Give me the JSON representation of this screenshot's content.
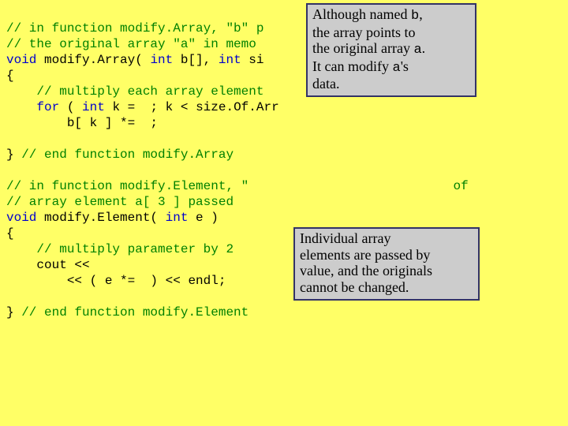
{
  "code": {
    "l1_a": "// in function modify.Array, \"b\" p",
    "l2_a": "// the original array \"a\" in memo",
    "l3_a": "void",
    "l3_b": " modify.Array( ",
    "l3_c": "int",
    "l3_d": " b[], ",
    "l3_e": "int",
    "l3_f": " si",
    "l4": "{",
    "l5": "    // multiply each array element",
    "l6_a": "    ",
    "l6_b": "for",
    "l6_c": " ( ",
    "l6_d": "int",
    "l6_e": " k =  ; k < size.Of.Arr",
    "l7": "        b[ k ] *=  ;",
    "l8": "",
    "l9": "} ",
    "l9_b": "// end function modify.Array",
    "l10": "",
    "l11_a": "// in function modify.Element, \"",
    "l11_b": " of",
    "l12": "// array element a[ 3 ] passed ",
    "l13_a": "void",
    "l13_b": " modify.Element( ",
    "l13_c": "int",
    "l13_d": " e )",
    "l14": "{",
    "l15": "    // multiply parameter by 2",
    "l16": "    cout << ",
    "l17": "        << ( e *=  ) << endl;",
    "l18": "",
    "l19": "} ",
    "l19_b": "// end function modify.Element"
  },
  "callout_top": {
    "t1_a": "Although named ",
    "t1_b": "b",
    "t1_c": ",",
    "t2": "the array points to",
    "t3_a": "the original array ",
    "t3_b": "a",
    "t3_c": ".",
    "t4_a": "It can modify ",
    "t4_b": "a",
    "t4_c": "'s",
    "t5": "data."
  },
  "callout_bot": {
    "b1": "Individual array",
    "b2": "elements are passed by",
    "b3": "value, and the originals",
    "b4": "cannot be changed."
  },
  "style": {
    "bg": "#ffff66",
    "comment_color": "#008000",
    "keyword_color": "#0000cc",
    "callout_bg": "#cccccc",
    "callout_border": "#333366",
    "code_font": "Courier New",
    "callout_font": "Times New Roman"
  }
}
